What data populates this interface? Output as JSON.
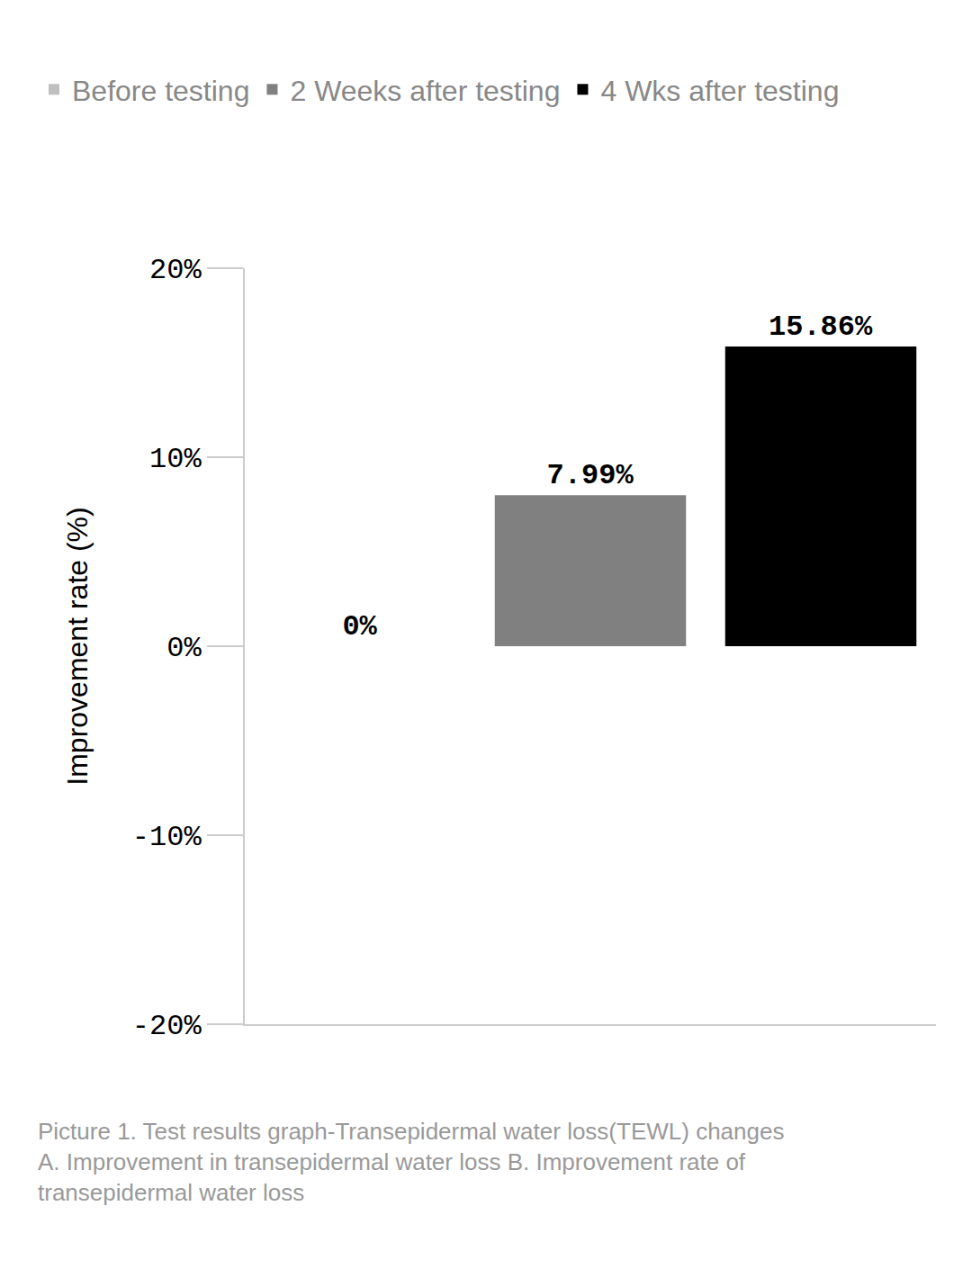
{
  "chart_data": {
    "type": "bar",
    "categories": [
      "Before testing",
      "2 Weeks after testing",
      "4 Wks after testing"
    ],
    "values": [
      0,
      7.99,
      15.86
    ],
    "value_labels": [
      "0%",
      "7.99%",
      "15.86%"
    ],
    "colors": [
      "#bfbfbf",
      "#808080",
      "#000000"
    ],
    "ylabel": "Improvement rate (%)",
    "ylim": [
      -20,
      20
    ],
    "yticks": [
      {
        "value": -20,
        "label": "-20%"
      },
      {
        "value": -10,
        "label": "-10%"
      },
      {
        "value": 0,
        "label": "0%"
      },
      {
        "value": 10,
        "label": "10%"
      },
      {
        "value": 20,
        "label": "20%"
      }
    ],
    "grid": false,
    "legend": "top left",
    "data_labels": true,
    "tick_labels": "y",
    "annotations": [
      "Picture 1. Test results graph-Transepidermal water loss(TEWL) changes A. Improvement in transepidermal water loss B. Improvement rate of transepidermal water loss"
    ]
  }
}
